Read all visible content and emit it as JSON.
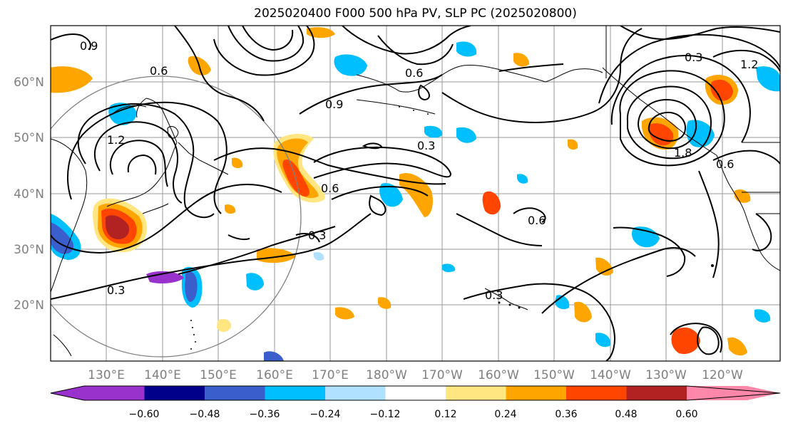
{
  "title": "2025020400 F000 500 hPa PV, SLP PC (2025020800)",
  "lat_labels": [
    "60°N",
    "50°N",
    "40°N",
    "30°N",
    "20°N"
  ],
  "lon_labels": [
    "130°E",
    "140°E",
    "150°E",
    "160°E",
    "170°E",
    "180°W",
    "170°W",
    "160°W",
    "150°W",
    "140°W",
    "130°W",
    "120°W"
  ],
  "colorbar": {
    "ticks": [
      "−0.60",
      "−0.48",
      "−0.36",
      "−0.24",
      "−0.12",
      "0.12",
      "0.24",
      "0.36",
      "0.48",
      "0.60"
    ],
    "colors": [
      "#9932cc",
      "#00008b",
      "#3a5fcd",
      "#00bfff",
      "#b0e2ff",
      "#ffffff",
      "#ffe680",
      "#ffa500",
      "#ff4500",
      "#b22222",
      "#ff88aa"
    ]
  },
  "contour_labels": [
    "0.3",
    "0.3",
    "0.3",
    "0.3",
    "0.6",
    "0.6",
    "0.6",
    "0.6",
    "0.9",
    "0.9",
    "1.2",
    "1.2",
    "1.8",
    "0.3",
    "0.6"
  ]
}
